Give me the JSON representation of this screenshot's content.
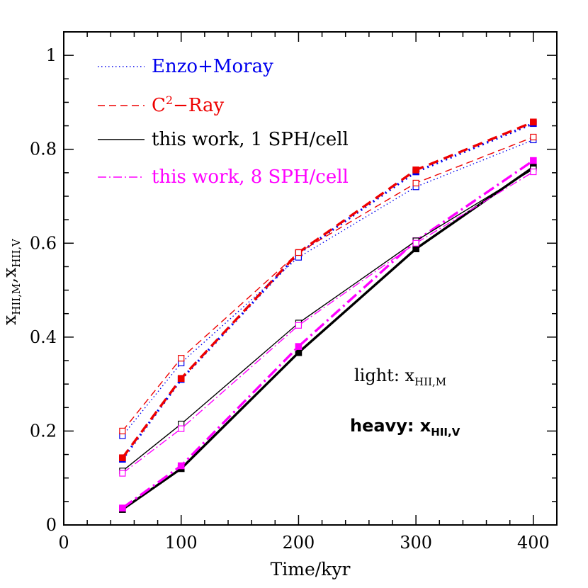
{
  "chart_data": {
    "type": "line",
    "xlabel": "Time/kyr",
    "ylabel_main": "x",
    "ylabel_sub1": "HII,M",
    "ylabel_sep": ",x",
    "ylabel_sub2": "HII,V",
    "xlim": [
      0,
      420
    ],
    "ylim": [
      0,
      1.05
    ],
    "x_ticks": [
      0,
      100,
      200,
      300,
      400
    ],
    "y_ticks": [
      0,
      0.2,
      0.4,
      0.6,
      0.8,
      1
    ],
    "x_tick_labels": [
      "0",
      "100",
      "200",
      "300",
      "400"
    ],
    "y_tick_labels": [
      "0",
      "0.2",
      "0.4",
      "0.6",
      "0.8",
      "1"
    ],
    "x": [
      50,
      100,
      200,
      300,
      400
    ],
    "legend_placement": "top-left",
    "legend": [
      {
        "label": "Enzo+Moray",
        "color": "#0000ee",
        "dash": "dotted"
      },
      {
        "label_pre": "C",
        "label_sup": "2",
        "label_post": "−Ray",
        "color": "#ee0000",
        "dash": "dashed"
      },
      {
        "label": "this work, 1 SPH/cell",
        "color": "#000000",
        "dash": "solid"
      },
      {
        "label": "this work, 8 SPH/cell",
        "color": "#ff00ff",
        "dash": "dashdot"
      }
    ],
    "series": [
      {
        "code": "Enzo+Moray",
        "weight": "light",
        "color": "#0000ee",
        "dash": "dotted",
        "values": [
          0.19,
          0.345,
          0.57,
          0.72,
          0.82
        ]
      },
      {
        "code": "C2-Ray",
        "weight": "light",
        "color": "#ee0000",
        "dash": "dashed",
        "values": [
          0.2,
          0.355,
          0.58,
          0.728,
          0.826
        ]
      },
      {
        "code": "this work 1",
        "weight": "light",
        "color": "#000000",
        "dash": "solid",
        "values": [
          0.115,
          0.215,
          0.43,
          0.605,
          0.758
        ]
      },
      {
        "code": "this work 8",
        "weight": "light",
        "color": "#ff00ff",
        "dash": "dashdot",
        "values": [
          0.11,
          0.205,
          0.425,
          0.6,
          0.752
        ]
      },
      {
        "code": "Enzo+Moray",
        "weight": "heavy",
        "color": "#0000ee",
        "dash": "dotted",
        "values": [
          0.14,
          0.31,
          0.578,
          0.752,
          0.855
        ]
      },
      {
        "code": "C2-Ray",
        "weight": "heavy",
        "color": "#ee0000",
        "dash": "dashed",
        "values": [
          0.143,
          0.312,
          0.58,
          0.756,
          0.858
        ]
      },
      {
        "code": "this work 1",
        "weight": "heavy",
        "color": "#000000",
        "dash": "solid",
        "values": [
          0.033,
          0.12,
          0.367,
          0.588,
          0.762
        ]
      },
      {
        "code": "this work 8",
        "weight": "heavy",
        "color": "#ff00ff",
        "dash": "dashdot",
        "values": [
          0.036,
          0.126,
          0.38,
          0.605,
          0.776
        ]
      }
    ],
    "annotations": {
      "light_label": "light: x",
      "light_sub": "HII,M",
      "heavy_label": "heavy: x",
      "heavy_sub": "HII,V"
    }
  }
}
